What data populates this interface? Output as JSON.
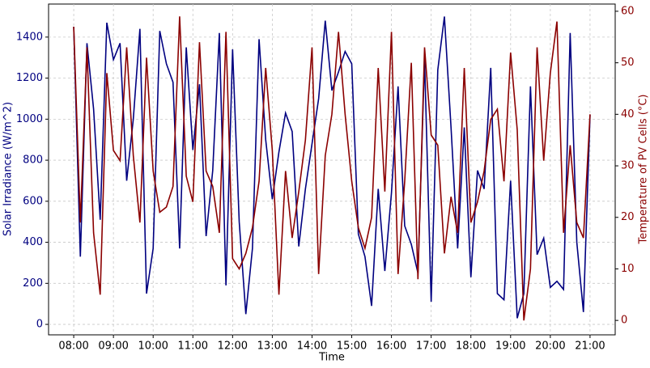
{
  "chart_data": {
    "type": "line",
    "x_label": "Time",
    "y_label": "Solar Irradiance (W/m^2)",
    "y2_label": "Temperature of PV Cells (°C)",
    "x": [
      "08:00",
      "08:10",
      "08:20",
      "08:30",
      "08:40",
      "08:50",
      "09:00",
      "09:10",
      "09:20",
      "09:30",
      "09:40",
      "09:50",
      "10:00",
      "10:10",
      "10:20",
      "10:30",
      "10:40",
      "10:50",
      "11:00",
      "11:10",
      "11:20",
      "11:30",
      "11:40",
      "11:50",
      "12:00",
      "12:10",
      "12:20",
      "12:30",
      "12:40",
      "12:50",
      "13:00",
      "13:10",
      "13:20",
      "13:30",
      "13:40",
      "13:50",
      "14:00",
      "14:10",
      "14:20",
      "14:30",
      "14:40",
      "14:50",
      "15:00",
      "15:10",
      "15:20",
      "15:30",
      "15:40",
      "15:50",
      "16:00",
      "16:10",
      "16:20",
      "16:30",
      "16:40",
      "16:50",
      "17:00",
      "17:10",
      "17:20",
      "17:30",
      "17:40",
      "17:50",
      "18:00",
      "18:10",
      "18:20",
      "18:30",
      "18:40",
      "18:50",
      "19:00",
      "19:10",
      "19:20",
      "19:30",
      "19:40",
      "19:50",
      "20:00",
      "20:10",
      "20:20",
      "20:30",
      "20:40",
      "20:50",
      "21:00"
    ],
    "series": [
      {
        "name": "Solar Irradiance",
        "color": "#000080",
        "axis": "y",
        "values": [
          1450,
          330,
          1370,
          1050,
          510,
          1470,
          1290,
          1370,
          700,
          1000,
          1440,
          150,
          370,
          1430,
          1270,
          1180,
          370,
          1350,
          850,
          1170,
          430,
          750,
          1420,
          190,
          1340,
          500,
          50,
          370,
          1390,
          900,
          610,
          840,
          1030,
          940,
          380,
          660,
          880,
          1100,
          1480,
          1140,
          1230,
          1330,
          1270,
          440,
          330,
          90,
          660,
          260,
          640,
          1160,
          480,
          390,
          250,
          1290,
          110,
          1240,
          1500,
          960,
          370,
          960,
          230,
          750,
          660,
          1250,
          150,
          120,
          700,
          30,
          150,
          1160,
          340,
          420,
          180,
          210,
          170,
          1420,
          400,
          60,
          1020
        ]
      },
      {
        "name": "Temperature of PV Cells",
        "color": "#8b0000",
        "axis": "y2",
        "values": [
          57,
          19,
          53,
          17,
          5,
          48,
          33,
          31,
          53,
          32,
          19,
          51,
          29,
          21,
          22,
          26,
          59,
          28,
          23,
          54,
          29,
          26,
          17,
          56,
          12,
          10,
          13,
          18,
          27,
          49,
          33,
          5,
          29,
          16,
          25,
          35,
          53,
          9,
          32,
          40,
          56,
          40,
          27,
          18,
          14,
          20,
          49,
          25,
          56,
          9,
          27,
          50,
          8,
          53,
          36,
          34,
          13,
          24,
          17,
          49,
          19,
          23,
          29,
          39,
          41,
          27,
          52,
          37,
          0,
          10,
          53,
          31,
          48,
          58,
          17,
          34,
          19,
          16,
          40
        ]
      }
    ],
    "xlim": [
      "07:22",
      "21:38"
    ],
    "xticks": [
      "08:00",
      "09:00",
      "10:00",
      "11:00",
      "12:00",
      "13:00",
      "14:00",
      "15:00",
      "16:00",
      "17:00",
      "18:00",
      "19:00",
      "20:00",
      "21:00"
    ],
    "ylim": [
      -51,
      1561
    ],
    "yticks": [
      0,
      200,
      400,
      600,
      800,
      1000,
      1200,
      1400
    ],
    "y2lim": [
      -2.8,
      61.4
    ],
    "y2ticks": [
      0,
      10,
      20,
      30,
      40,
      50,
      60
    ],
    "grid": true
  }
}
